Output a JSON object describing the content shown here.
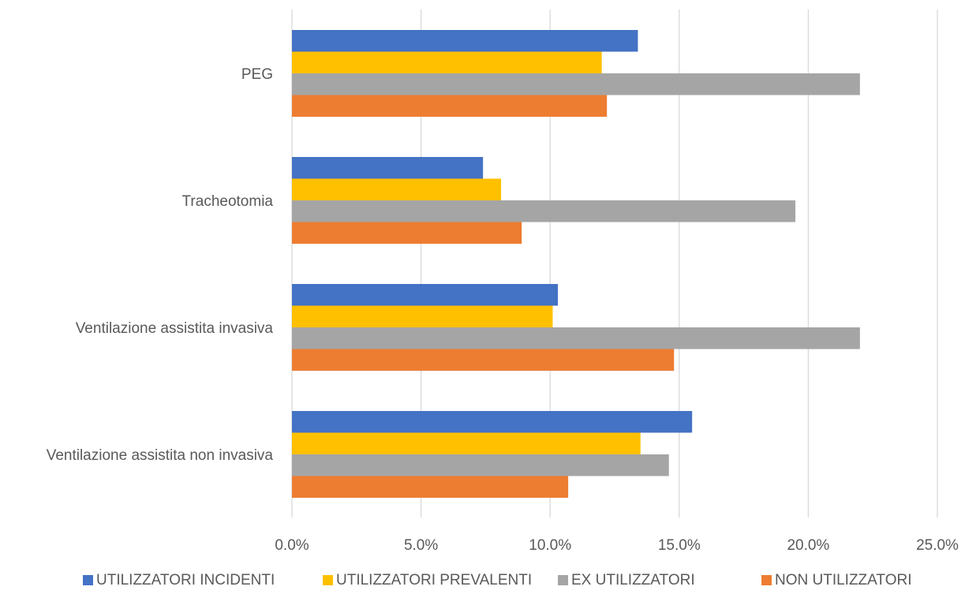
{
  "chart_data": {
    "type": "bar",
    "orientation": "horizontal",
    "title": "",
    "xlabel": "",
    "ylabel": "",
    "categories": [
      "PEG",
      "Tracheotomia",
      "Ventilazione assistita invasiva",
      "Ventilazione assistita non invasiva"
    ],
    "series": [
      {
        "name": "UTILIZZATORI INCIDENTI",
        "color": "#4472C4",
        "values": [
          13.4,
          7.4,
          10.3,
          15.5
        ]
      },
      {
        "name": "UTILIZZATORI PREVALENTI",
        "color": "#FFC000",
        "values": [
          12.0,
          8.1,
          10.1,
          13.5
        ]
      },
      {
        "name": "EX UTILIZZATORI",
        "color": "#A5A5A5",
        "values": [
          22.0,
          19.5,
          22.0,
          14.6
        ]
      },
      {
        "name": "NON UTILIZZATORI",
        "color": "#ED7D31",
        "values": [
          12.2,
          8.9,
          14.8,
          10.7
        ]
      }
    ],
    "xlim": [
      0,
      25
    ],
    "xticks": [
      "0.0%",
      "5.0%",
      "10.0%",
      "15.0%",
      "20.0%",
      "25.0%"
    ],
    "value_unit": "percent",
    "grid": "vertical",
    "legend_position": "bottom"
  }
}
